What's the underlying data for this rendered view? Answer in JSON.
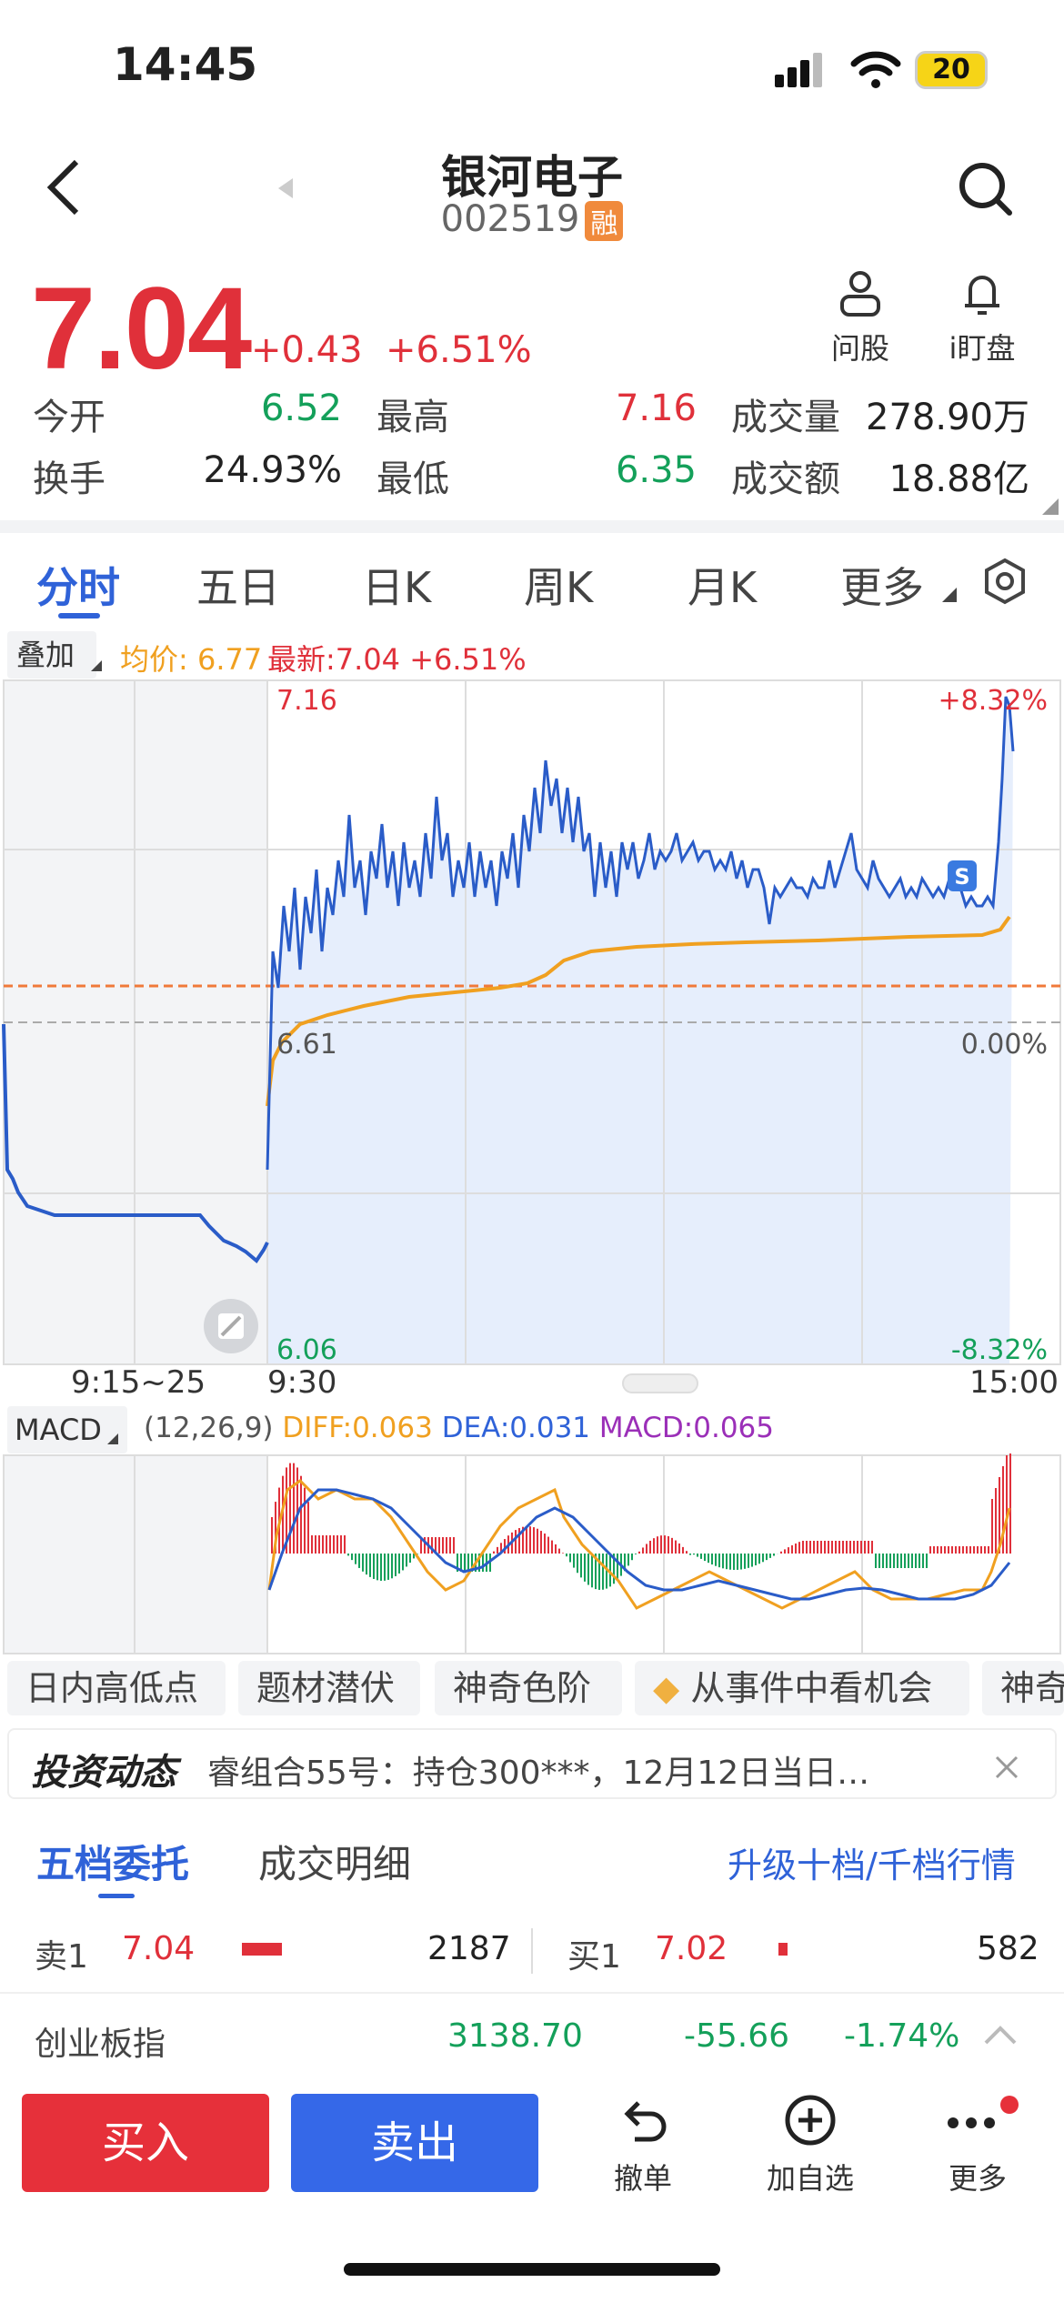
{
  "status": {
    "time": "14:45",
    "battery": "20"
  },
  "header": {
    "name": "银河电子",
    "code": "002519",
    "badge": "融"
  },
  "quote": {
    "price": "7.04",
    "change": "+0.43",
    "change_pct": "+6.51%"
  },
  "actions": [
    {
      "label": "问股",
      "icon": "person-icon"
    },
    {
      "label": "i盯盘",
      "icon": "bell-icon"
    }
  ],
  "stats": [
    {
      "label": "今开",
      "value": "6.52",
      "color": "#14a05a"
    },
    {
      "label": "最高",
      "value": "7.16",
      "color": "#e0303a"
    },
    {
      "label": "成交量",
      "value": "278.90万",
      "color": "#222222"
    },
    {
      "label": "换手",
      "value": "24.93%",
      "color": "#222222"
    },
    {
      "label": "最低",
      "value": "6.35",
      "color": "#14a05a"
    },
    {
      "label": "成交额",
      "value": "18.88亿",
      "color": "#222222"
    }
  ],
  "tabs": [
    "分时",
    "五日",
    "日K",
    "周K",
    "月K",
    "更多"
  ],
  "overlay": {
    "label": "叠加",
    "avg": "均价: 6.77",
    "latest": "最新:7.04 +6.51%"
  },
  "chart": {
    "high_price": "7.16",
    "high_pct": "+8.32%",
    "mid_price": "6.61",
    "mid_pct": "0.00%",
    "low_price": "6.06",
    "low_pct": "-8.32%",
    "time_pre": "9:15~25",
    "time_open": "9:30",
    "time_close": "15:00",
    "marker": "S"
  },
  "macd": {
    "label": "MACD",
    "params": "(12,26,9)",
    "diff": "DIFF:0.063",
    "dea": "DEA:0.031",
    "macd": "MACD:0.065"
  },
  "chips": [
    "日内高低点",
    "题材潜伏",
    "神奇色阶",
    "从事件中看机会",
    "神奇"
  ],
  "news": {
    "title": "投资动态",
    "text": "睿组合55号：持仓300***，12月12日当日…"
  },
  "order_tabs": {
    "five": "五档委托",
    "detail": "成交明细",
    "upgrade": "升级十档/千档行情"
  },
  "order_book": {
    "sell1": {
      "label": "卖1",
      "price": "7.04",
      "vol": "2187"
    },
    "buy1": {
      "label": "买1",
      "price": "7.02",
      "vol": "582"
    }
  },
  "index": {
    "name": "创业板指",
    "value": "3138.70",
    "change": "-55.66",
    "pct": "-1.74%"
  },
  "bottom": {
    "buy": "买入",
    "sell": "卖出",
    "cancel": "撤单",
    "watch": "加自选",
    "more": "更多"
  }
}
